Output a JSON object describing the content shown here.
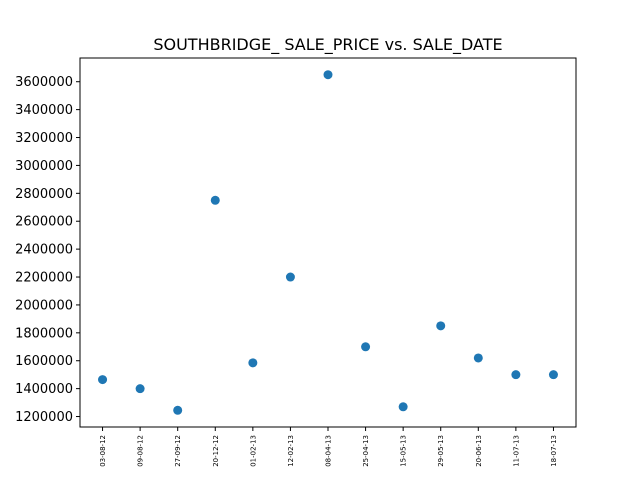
{
  "chart_data": {
    "type": "scatter",
    "title": "SOUTHBRIDGE_ SALE_PRICE vs. SALE_DATE",
    "xlabel": "",
    "ylabel": "",
    "categories": [
      "03-08-12",
      "09-08-12",
      "27-09-12",
      "20-12-12",
      "01-02-13",
      "12-02-13",
      "08-04-13",
      "25-04-13",
      "15-05-13",
      "29-05-13",
      "20-06-13",
      "11-07-13",
      "18-07-13"
    ],
    "values": [
      1465000,
      1400000,
      1245000,
      2750000,
      1585000,
      2200000,
      3650000,
      1700000,
      1270000,
      1850000,
      1620000,
      1500000,
      1500000
    ],
    "yticks": [
      1200000,
      1400000,
      1600000,
      1800000,
      2000000,
      2200000,
      2400000,
      2600000,
      2800000,
      3000000,
      3200000,
      3400000,
      3600000
    ],
    "ylim": [
      1125000,
      3770000
    ],
    "grid": false,
    "marker_color": "#1f77b4"
  }
}
